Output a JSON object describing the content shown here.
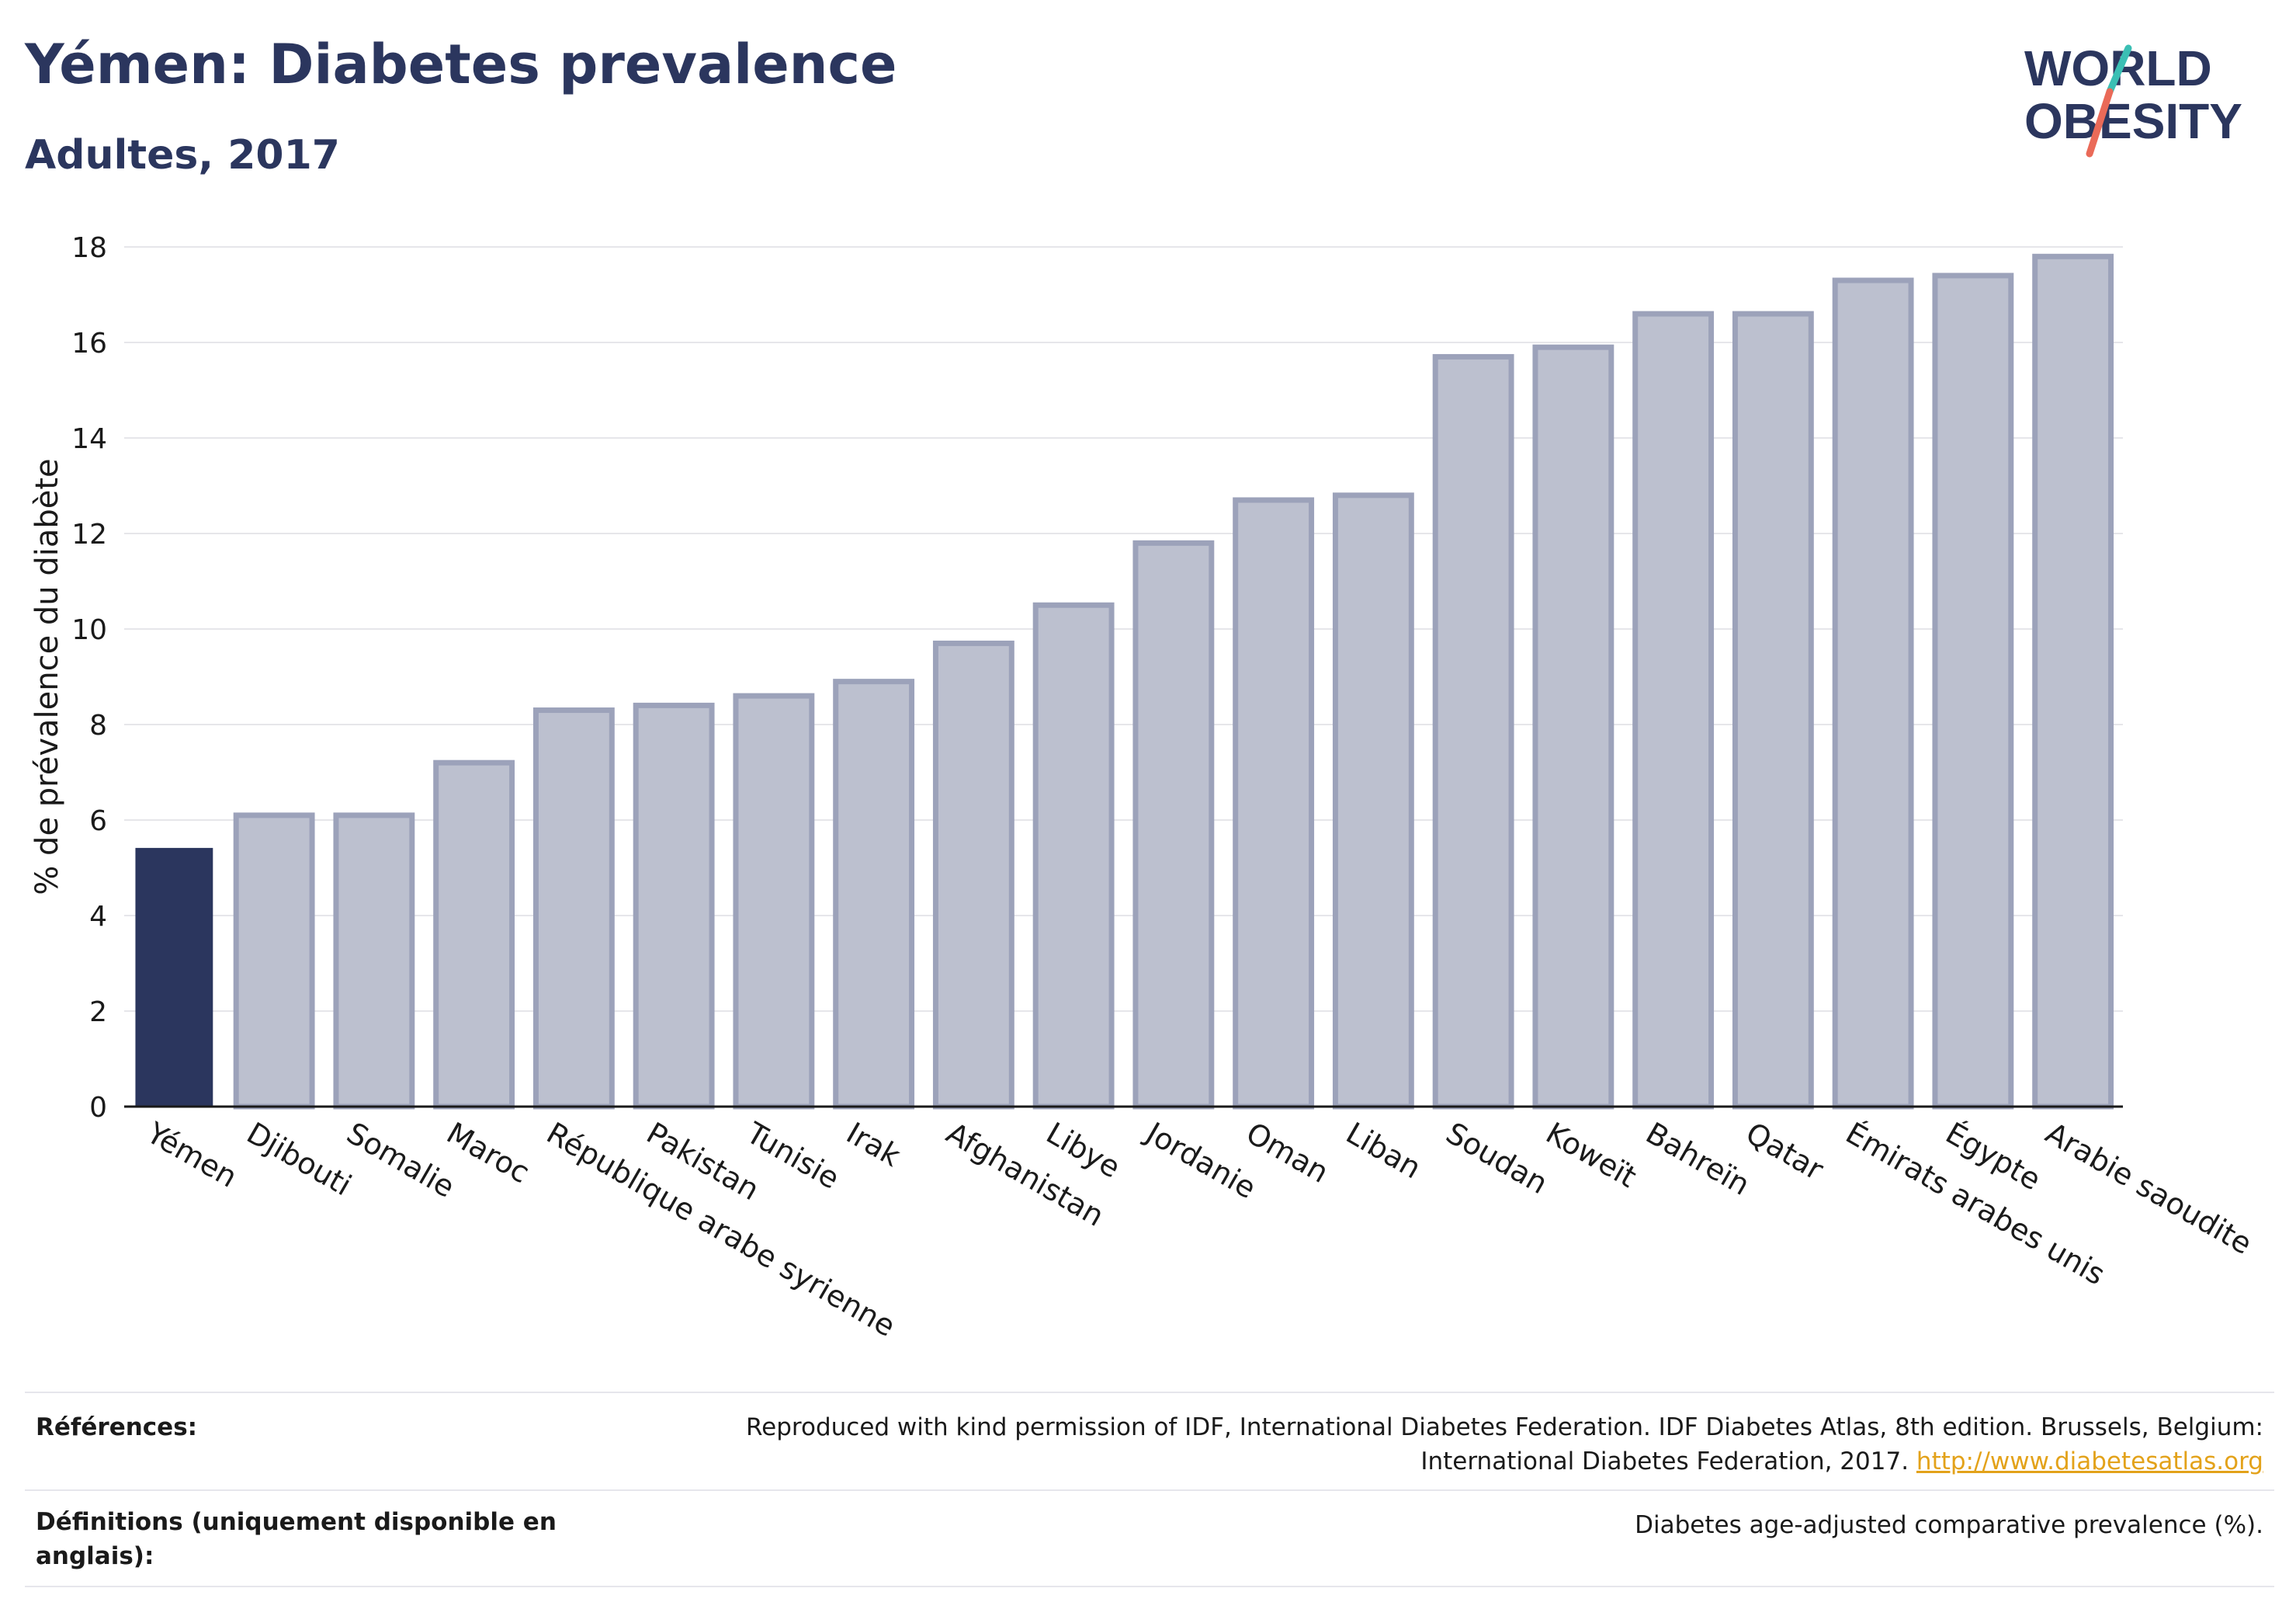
{
  "header": {
    "title": "Yémen: Diabetes prevalence",
    "subtitle": "Adultes, 2017"
  },
  "logo": {
    "line1": "WORLD",
    "line2": "OBESITY",
    "icon": "world-obesity-slash-logo"
  },
  "chart_data": {
    "type": "bar",
    "ylabel": "% de prévalence du diabète",
    "ylim": [
      0,
      18
    ],
    "yticks": [
      0,
      2,
      4,
      6,
      8,
      10,
      12,
      14,
      16,
      18
    ],
    "grid": true,
    "highlight": "Yémen",
    "colors": {
      "highlight": "#2b365e",
      "bar_fill": "#bcc0cf",
      "bar_stroke": "#9ca2ba",
      "grid": "#e6e6ea",
      "axis": "#1a1a1a"
    },
    "categories": [
      "Yémen",
      "Djibouti",
      "Somalie",
      "Maroc",
      "République arabe syrienne",
      "Pakistan",
      "Tunisie",
      "Irak",
      "Afghanistan",
      "Libye",
      "Jordanie",
      "Oman",
      "Liban",
      "Soudan",
      "Koweït",
      "Bahreïn",
      "Qatar",
      "Émirats arabes unis",
      "Égypte",
      "Arabie saoudite"
    ],
    "values": [
      5.4,
      6.1,
      6.1,
      7.2,
      8.3,
      8.4,
      8.6,
      8.9,
      9.7,
      10.5,
      11.8,
      12.7,
      12.8,
      15.7,
      15.9,
      16.6,
      16.6,
      17.3,
      17.4,
      17.8
    ]
  },
  "references": {
    "label": "Références:",
    "text_line1": "Reproduced with kind permission of IDF, International Diabetes Federation. IDF Diabetes Atlas, 8th edition. Brussels, Belgium:",
    "text_line2": "International Diabetes Federation, 2017.",
    "link": "http://www.diabetesatlas.org"
  },
  "definitions": {
    "label": "Définitions (uniquement disponible en anglais):",
    "text": "Diabetes age-adjusted comparative prevalence (%)."
  }
}
